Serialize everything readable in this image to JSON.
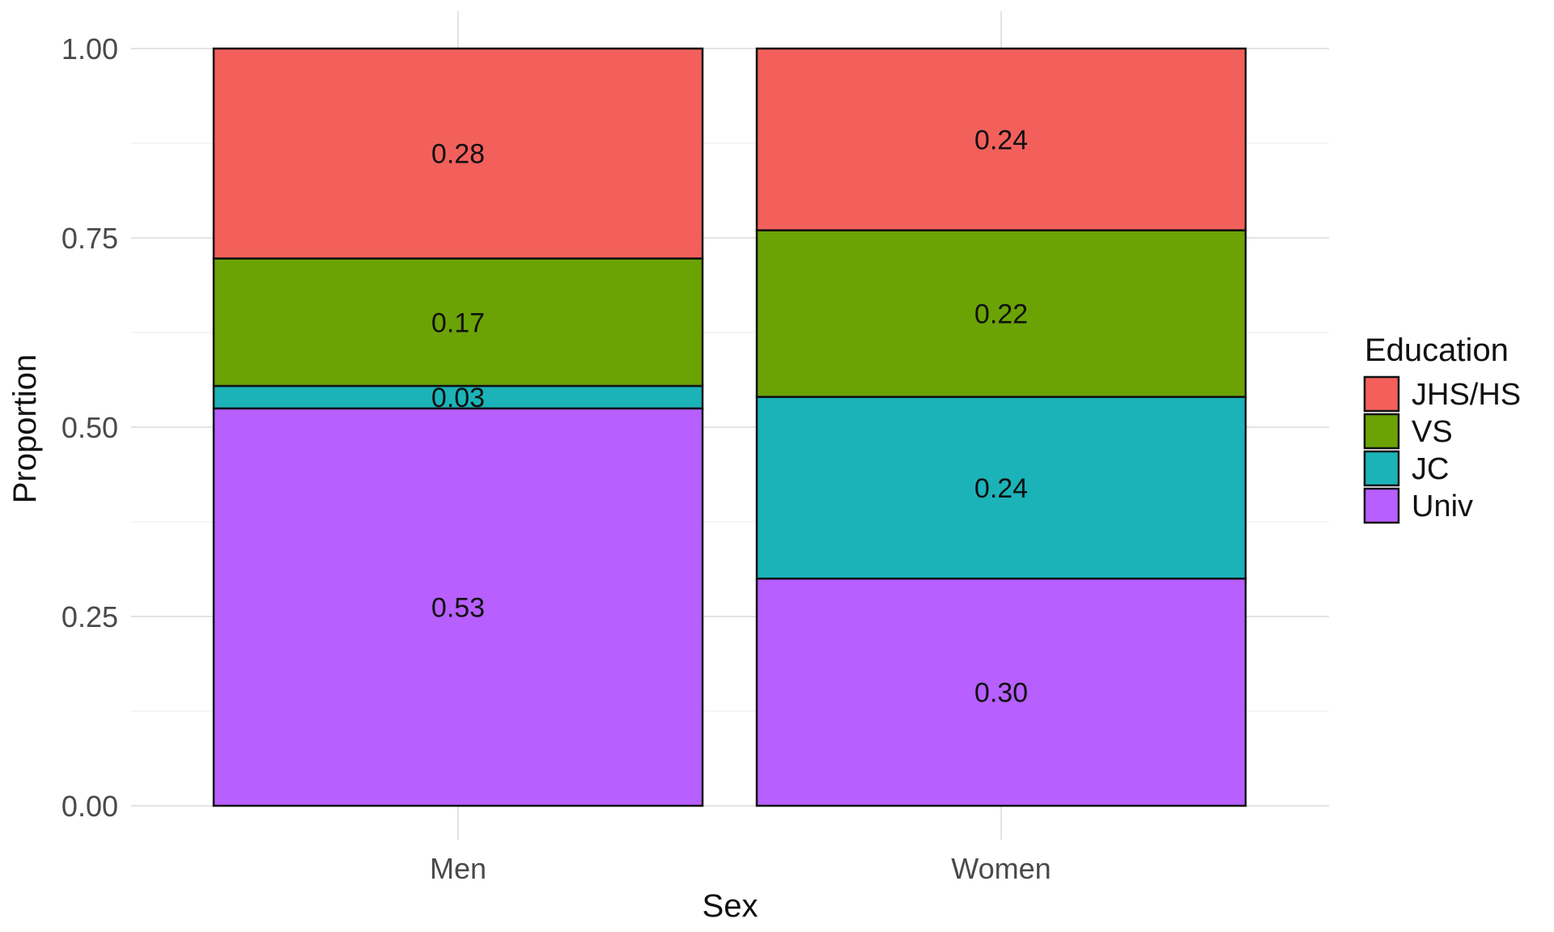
{
  "chart_data": {
    "type": "bar",
    "stacked": true,
    "x_title": "Sex",
    "y_title": "Proportion",
    "categories": [
      "Men",
      "Women"
    ],
    "ylim": [
      0,
      1
    ],
    "y_ticks": [
      "0.00",
      "0.25",
      "0.50",
      "0.75",
      "1.00"
    ],
    "y_tick_values": [
      0,
      0.25,
      0.5,
      0.75,
      1.0
    ],
    "grid": true,
    "legend": {
      "title": "Education",
      "position": "right"
    },
    "series": [
      {
        "name": "Univ",
        "color": "#B75FFF",
        "values": [
          0.53,
          0.3
        ],
        "labels": [
          "0.53",
          "0.30"
        ]
      },
      {
        "name": "JC",
        "color": "#1BB3B8",
        "values": [
          0.03,
          0.24
        ],
        "labels": [
          "0.03",
          "0.24"
        ]
      },
      {
        "name": "VS",
        "color": "#6BA305",
        "values": [
          0.17,
          0.22
        ],
        "labels": [
          "0.17",
          "0.22"
        ]
      },
      {
        "name": "JHS/HS",
        "color": "#F3605C",
        "values": [
          0.28,
          0.24
        ],
        "labels": [
          "0.28",
          "0.24"
        ]
      }
    ],
    "legend_order": [
      "JHS/HS",
      "VS",
      "JC",
      "Univ"
    ]
  }
}
